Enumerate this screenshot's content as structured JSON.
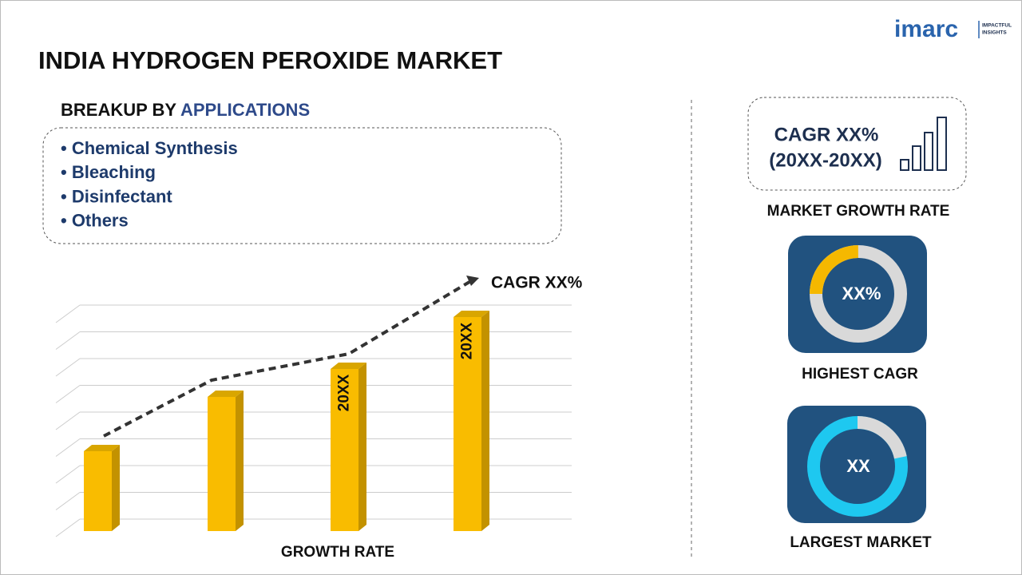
{
  "title": "INDIA HYDROGEN PEROXIDE MARKET",
  "logo": {
    "name": "imarc",
    "tagline_1": "IMPACTFUL",
    "tagline_2": "INSIGHTS"
  },
  "breakup": {
    "heading_prefix": "BREAKUP BY",
    "heading_highlight": "APPLICATIONS",
    "items": [
      "• Chemical Synthesis",
      "• Bleaching",
      "• Disinfectant",
      "• Others"
    ]
  },
  "growth_chart": {
    "cagr_label": "CAGR XX%",
    "bar_labels": [
      "20XX",
      "20XX"
    ],
    "x_label": "GROWTH RATE"
  },
  "cagr_box": {
    "line_1": "CAGR XX%",
    "line_2": "(20XX-20XX)",
    "caption": "MARKET GROWTH RATE"
  },
  "highest": {
    "value": "XX%",
    "caption": "HIGHEST CAGR"
  },
  "largest": {
    "value": "XX",
    "caption": "LARGEST MARKET"
  }
}
